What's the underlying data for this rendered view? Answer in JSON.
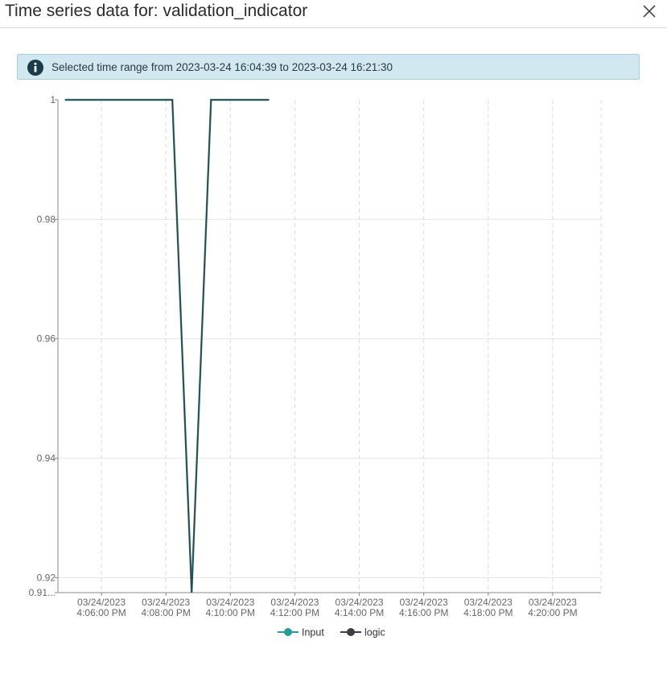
{
  "dialog": {
    "title": "Time series data for: validation_indicator",
    "close_icon": "close-icon"
  },
  "banner": {
    "icon": "info-icon",
    "text": "Selected time range from 2023-03-24 16:04:39 to 2023-03-24 16:21:30",
    "background": "#d1e8f0",
    "icon_color": "#1d3c4a"
  },
  "chart_data": {
    "type": "line",
    "title": "",
    "xlabel": "",
    "ylabel": "",
    "xlim": [
      "2023-03-24 16:04:39",
      "2023-03-24 16:21:30"
    ],
    "ylim": [
      0.9175,
      1.0
    ],
    "y_ticks": [
      {
        "value": 1.0,
        "label": "1"
      },
      {
        "value": 0.98,
        "label": "0.98"
      },
      {
        "value": 0.96,
        "label": "0.96"
      },
      {
        "value": 0.94,
        "label": "0.94"
      },
      {
        "value": 0.92,
        "label": "0.92"
      },
      {
        "value": 0.9175,
        "label": "0.91..."
      }
    ],
    "x_ticks": [
      {
        "value": "2023-03-24 16:06:00",
        "line1": "03/24/2023",
        "line2": "4:06:00 PM"
      },
      {
        "value": "2023-03-24 16:08:00",
        "line1": "03/24/2023",
        "line2": "4:08:00 PM"
      },
      {
        "value": "2023-03-24 16:10:00",
        "line1": "03/24/2023",
        "line2": "4:10:00 PM"
      },
      {
        "value": "2023-03-24 16:12:00",
        "line1": "03/24/2023",
        "line2": "4:12:00 PM"
      },
      {
        "value": "2023-03-24 16:14:00",
        "line1": "03/24/2023",
        "line2": "4:14:00 PM"
      },
      {
        "value": "2023-03-24 16:16:00",
        "line1": "03/24/2023",
        "line2": "4:16:00 PM"
      },
      {
        "value": "2023-03-24 16:18:00",
        "line1": "03/24/2023",
        "line2": "4:18:00 PM"
      },
      {
        "value": "2023-03-24 16:20:00",
        "line1": "03/24/2023",
        "line2": "4:20:00 PM"
      }
    ],
    "series": [
      {
        "name": "Input",
        "color": "#2a9a9a",
        "points": [
          [
            "2023-03-24 16:04:52",
            1.0
          ],
          [
            "2023-03-24 16:08:12",
            1.0
          ],
          [
            "2023-03-24 16:08:48",
            0.9175
          ],
          [
            "2023-03-24 16:09:24",
            1.0
          ],
          [
            "2023-03-24 16:11:12",
            1.0
          ]
        ]
      },
      {
        "name": "logic",
        "color": "#3a3f44",
        "points": [
          [
            "2023-03-24 16:04:52",
            1.0
          ],
          [
            "2023-03-24 16:08:12",
            1.0
          ],
          [
            "2023-03-24 16:08:48",
            0.9175
          ],
          [
            "2023-03-24 16:09:24",
            1.0
          ],
          [
            "2023-03-24 16:11:12",
            1.0
          ]
        ]
      }
    ],
    "grid": true,
    "legend_position": "bottom"
  }
}
